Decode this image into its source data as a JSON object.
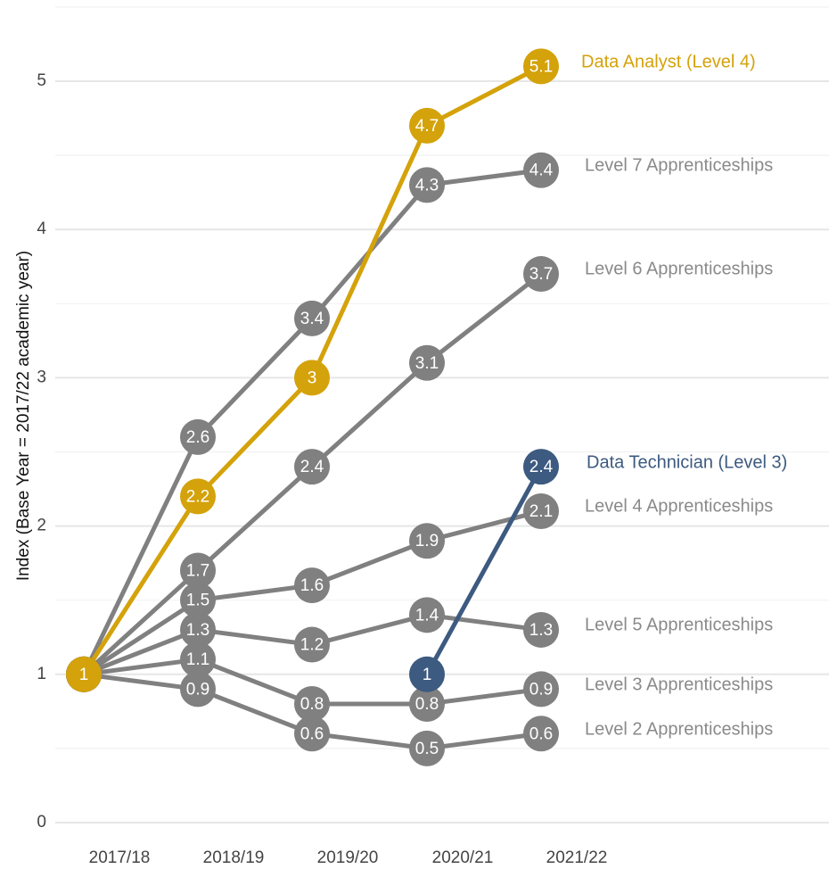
{
  "chart_data": {
    "type": "line",
    "title": "",
    "xlabel": "",
    "ylabel": "Index (Base Year = 2017/22 academic year)",
    "categories": [
      "2017/18",
      "2018/19",
      "2019/20",
      "2020/21",
      "2021/22"
    ],
    "ylim": [
      0,
      5.5
    ],
    "yticks": [
      0,
      1,
      2,
      3,
      4,
      5
    ],
    "grid": true,
    "legend": "direct labels at line ends",
    "series": [
      {
        "name": "Level 2 Apprenticeships",
        "color": "#808080",
        "values": [
          1,
          0.9,
          0.6,
          0.5,
          0.6
        ],
        "labels": [
          "1",
          "0.9",
          "0.6",
          "0.5",
          "0.6"
        ]
      },
      {
        "name": "Level 3 Apprenticeships",
        "color": "#808080",
        "values": [
          1,
          1.1,
          0.8,
          0.8,
          0.9
        ],
        "labels": [
          "1",
          "1.1",
          "0.8",
          "0.8",
          "0.9"
        ]
      },
      {
        "name": "Level 5 Apprenticeships",
        "color": "#808080",
        "values": [
          1,
          1.3,
          1.2,
          1.4,
          1.3
        ],
        "labels": [
          "1",
          "1.3",
          "1.2",
          "1.4",
          "1.3"
        ]
      },
      {
        "name": "Level 4 Apprenticeships",
        "color": "#808080",
        "values": [
          1,
          1.5,
          1.6,
          1.9,
          2.1
        ],
        "labels": [
          "1",
          "1.5",
          "1.6",
          "1.9",
          "2.1"
        ]
      },
      {
        "name": "Level 6 Apprenticeships",
        "color": "#808080",
        "values": [
          1,
          1.7,
          2.4,
          3.1,
          3.7
        ],
        "labels": [
          "1",
          "1.7",
          "2.4",
          "3.1",
          "3.7"
        ]
      },
      {
        "name": "Level 7 Apprenticeships",
        "color": "#808080",
        "values": [
          1,
          2.6,
          3.4,
          4.3,
          4.4
        ],
        "labels": [
          "1",
          "2.6",
          "3.4",
          "4.3",
          "4.4"
        ]
      },
      {
        "name": "Data Analyst (Level 4)",
        "color": "#D4A20A",
        "values": [
          1,
          2.2,
          3,
          4.7,
          5.1
        ],
        "labels": [
          "1",
          "2.2",
          "3",
          "4.7",
          "5.1"
        ]
      },
      {
        "name": "Data Technician (Level 3)",
        "color": "#3D5A80",
        "values": [
          null,
          null,
          null,
          1,
          2.4
        ],
        "labels": [
          "",
          "",
          "",
          "1",
          "2.4"
        ]
      }
    ]
  }
}
